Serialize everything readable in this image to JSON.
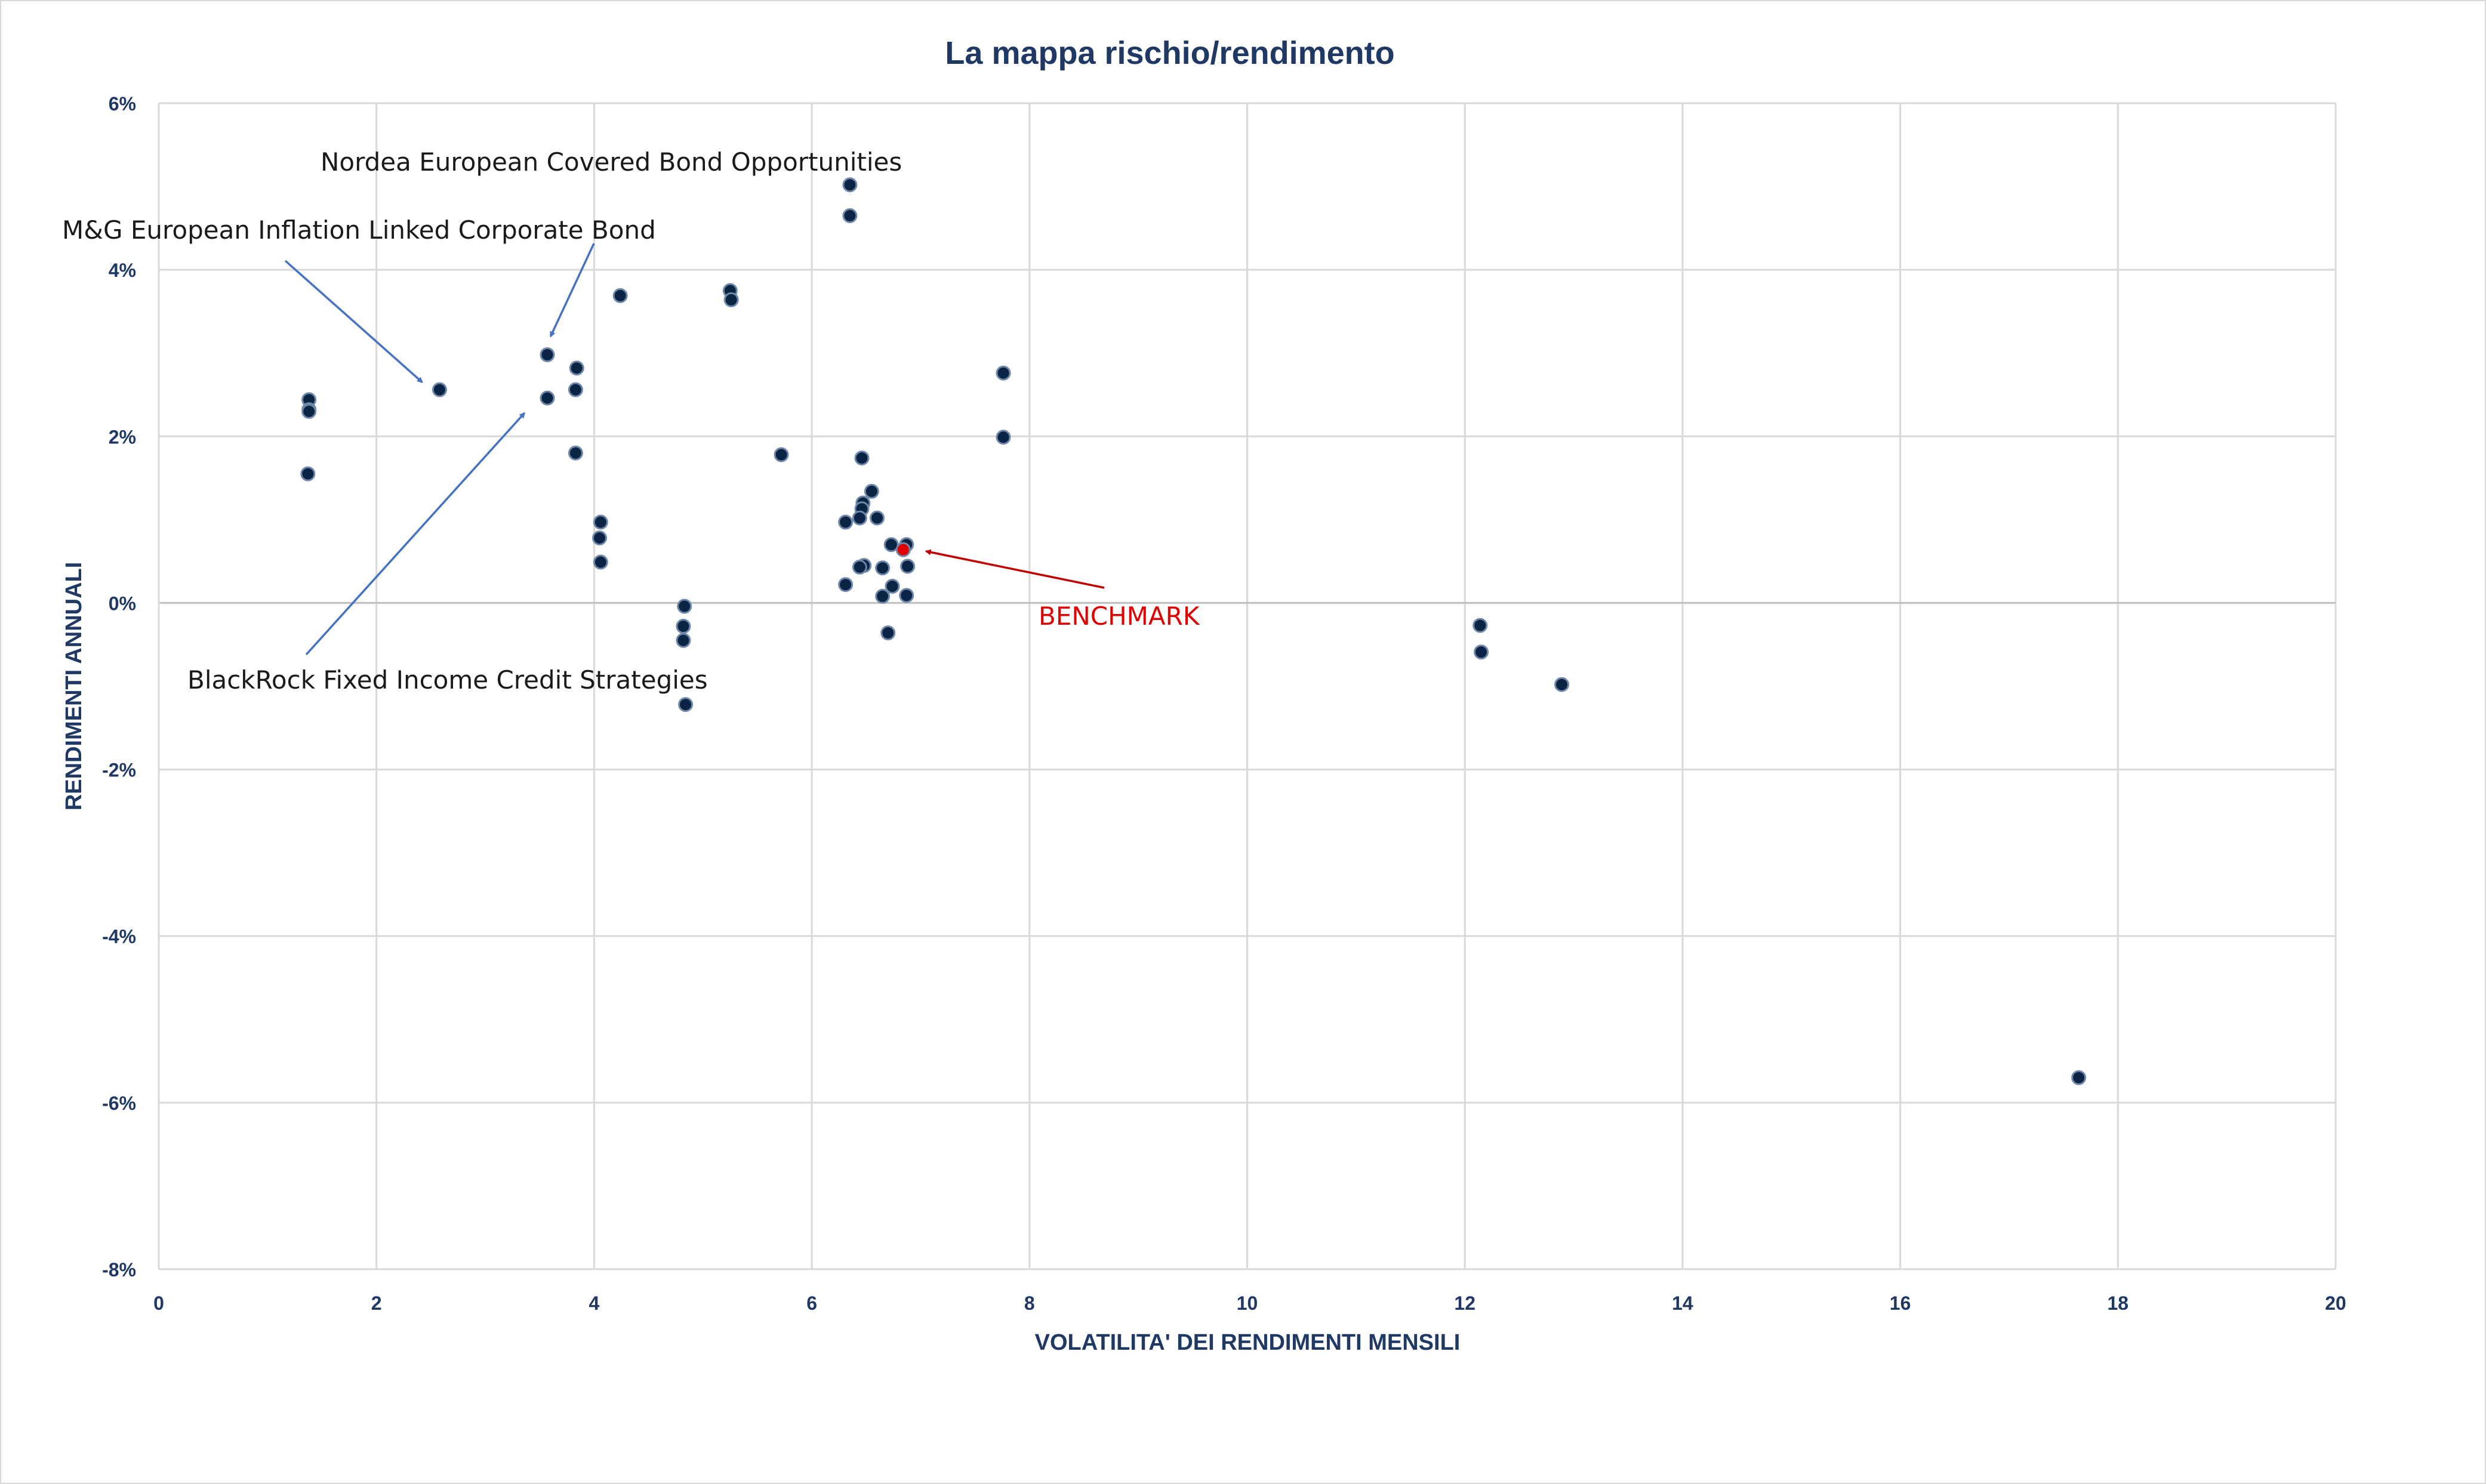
{
  "chart_data": {
    "type": "scatter",
    "title": "La mappa rischio/rendimento",
    "xlabel": "VOLATILITA' DEI RENDIMENTI MENSILI",
    "ylabel": "RENDIMENTI ANNUALI",
    "xlim": [
      0,
      20
    ],
    "ylim": [
      -8,
      6
    ],
    "x_ticks": [
      "0",
      "2",
      "4",
      "6",
      "8",
      "10",
      "12",
      "14",
      "16",
      "18",
      "20"
    ],
    "y_ticks": [
      "6%",
      "4%",
      "2%",
      "0%",
      "-2%",
      "-4%",
      "-6%",
      "-8%"
    ],
    "grid": true,
    "series": [
      {
        "color": "#0b2345",
        "points": [
          [
            1.38,
            2.44
          ],
          [
            1.38,
            2.32
          ],
          [
            1.38,
            2.3
          ],
          [
            1.37,
            1.55
          ],
          [
            2.58,
            2.56
          ],
          [
            3.57,
            2.98
          ],
          [
            3.57,
            2.46
          ],
          [
            3.84,
            2.82
          ],
          [
            3.83,
            2.56
          ],
          [
            3.83,
            1.8
          ],
          [
            4.06,
            0.97
          ],
          [
            4.05,
            0.78
          ],
          [
            4.06,
            0.49
          ],
          [
            4.24,
            3.69
          ],
          [
            4.83,
            -0.04
          ],
          [
            4.82,
            -0.28
          ],
          [
            4.82,
            -0.45
          ],
          [
            4.84,
            -1.22
          ],
          [
            5.25,
            3.75
          ],
          [
            5.26,
            3.64
          ],
          [
            5.72,
            1.78
          ],
          [
            6.35,
            5.02
          ],
          [
            6.35,
            4.65
          ],
          [
            6.46,
            1.74
          ],
          [
            6.55,
            1.34
          ],
          [
            6.47,
            1.2
          ],
          [
            6.46,
            1.13
          ],
          [
            6.44,
            1.02
          ],
          [
            6.31,
            0.97
          ],
          [
            6.6,
            1.02
          ],
          [
            6.73,
            0.7
          ],
          [
            6.87,
            0.7
          ],
          [
            6.48,
            0.45
          ],
          [
            6.44,
            0.43
          ],
          [
            6.65,
            0.42
          ],
          [
            6.88,
            0.44
          ],
          [
            6.31,
            0.22
          ],
          [
            6.74,
            0.2
          ],
          [
            6.65,
            0.08
          ],
          [
            6.87,
            0.09
          ],
          [
            6.7,
            -0.36
          ],
          [
            7.76,
            2.76
          ],
          [
            7.76,
            1.99
          ],
          [
            12.14,
            -0.27
          ],
          [
            12.15,
            -0.59
          ],
          [
            12.89,
            -0.98
          ],
          [
            17.64,
            -5.7
          ]
        ]
      },
      {
        "name": "BENCHMARK",
        "color": "#e00000",
        "points": [
          [
            6.84,
            0.64
          ]
        ]
      }
    ],
    "annotations": [
      {
        "text": "Nordea European Covered Bond Opportunities",
        "target": [
          3.6,
          3.2
        ]
      },
      {
        "text": "M&G European Inflation Linked Corporate Bond",
        "target": [
          2.42,
          2.65
        ]
      },
      {
        "text": "BlackRock Fixed Income Credit Strategies",
        "target": [
          3.36,
          2.28
        ]
      },
      {
        "text": "BENCHMARK",
        "target": [
          7.05,
          0.62
        ]
      }
    ]
  }
}
